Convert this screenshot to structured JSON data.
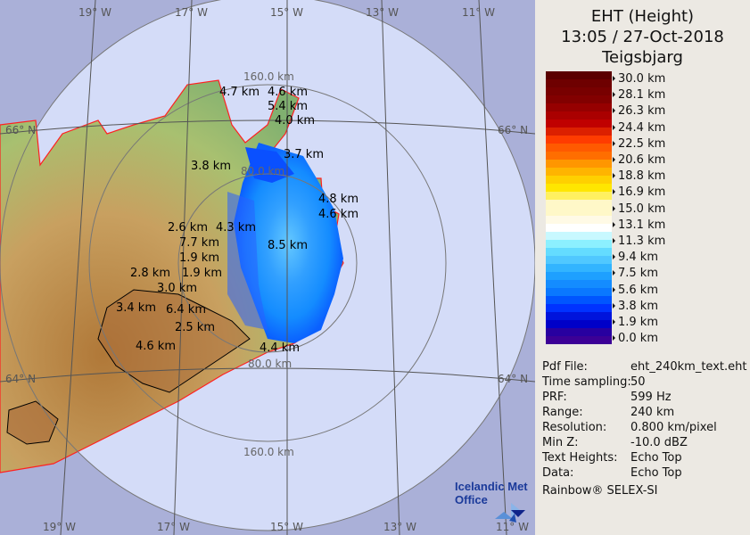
{
  "panel": {
    "title": "EHT (Height)",
    "datetime": "13:05 / 27-Oct-2018",
    "station": "Teigsbjarg"
  },
  "legend": {
    "colors": [
      "#5a0000",
      "#6e0000",
      "#780000",
      "#820000",
      "#960000",
      "#aa0000",
      "#c00000",
      "#dc2000",
      "#ff3c00",
      "#ff5a00",
      "#ff6e00",
      "#ff9600",
      "#ffb400",
      "#ffd000",
      "#ffe600",
      "#fff060",
      "#fff8c8",
      "#fff8c8",
      "#fffae6",
      "#ffffff",
      "#c8f8ff",
      "#8cf0ff",
      "#64dcff",
      "#50c8ff",
      "#32b4ff",
      "#1ea0ff",
      "#148cff",
      "#0a78ff",
      "#0055ff",
      "#0032ff",
      "#0014dc",
      "#0000c8",
      "#2800a0",
      "#3c0096"
    ],
    "ticks": [
      "30.0 km",
      "28.1 km",
      "26.3 km",
      "24.4 km",
      "22.5 km",
      "20.6 km",
      "18.8 km",
      "16.9 km",
      "15.0 km",
      "13.1 km",
      "11.3 km",
      "9.4 km",
      "7.5 km",
      "5.6 km",
      "3.8 km",
      "1.9 km",
      "0.0 km"
    ]
  },
  "info": [
    {
      "key": "Pdf File:",
      "value": "eht_240km_text.eht"
    },
    {
      "key": "Time sampling:",
      "value": "50"
    },
    {
      "key": "PRF:",
      "value": "599 Hz"
    },
    {
      "key": "Range:",
      "value": "240 km"
    },
    {
      "key": "Resolution:",
      "value": "0.800 km/pixel"
    },
    {
      "key": "Min Z:",
      "value": "-10.0 dBZ"
    },
    {
      "key": "Text Heights:",
      "value": "Echo Top"
    },
    {
      "key": "Data:",
      "value": "Echo Top"
    }
  ],
  "credit": "Rainbow® SELEX-SI",
  "logo": {
    "line1": "Icelandic Met",
    "line2": "Office"
  },
  "map": {
    "lon_labels": [
      "19° W",
      "17° W",
      "15° W",
      "13° W",
      "11° W"
    ],
    "lat_labels": [
      "66° N",
      "64° N"
    ],
    "range_labels": [
      "160.0 km",
      "80.0 km",
      "80.0 km",
      "160.0 km"
    ],
    "echo_labels": [
      "4.7 km",
      "4.6 km",
      "5.4 km",
      "4.0 km",
      "3.8 km",
      "3.7 km",
      "4.8 km",
      "4.6 km",
      "2.6 km",
      "4.3 km",
      "7.7 km",
      "8.5 km",
      "1.9 km",
      "2.8 km",
      "3.0 km",
      "1.9 km",
      "3.4 km",
      "6.4 km",
      "2.5 km",
      "4.6 km",
      "4.4 km"
    ],
    "colors": {
      "outside": "#aab0d8",
      "inside": "#d4dcf8",
      "coast": "#ff2020",
      "ring": "#777777"
    }
  }
}
